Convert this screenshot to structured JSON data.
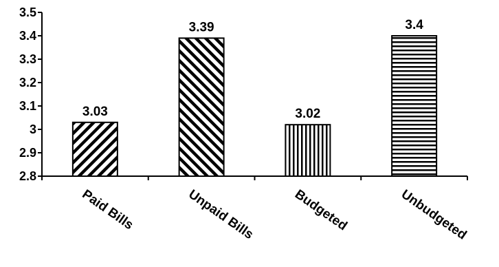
{
  "chart_data": {
    "type": "bar",
    "categories": [
      "Paid Bills",
      "Unpaid Bills",
      "Budgeted",
      "Unbudgeted"
    ],
    "values": [
      3.03,
      3.39,
      3.02,
      3.4
    ],
    "data_labels": [
      "3.03",
      "3.39",
      "3.02",
      "3.4"
    ],
    "patterns": [
      "diagonal-right",
      "diagonal-left",
      "vertical",
      "horizontal"
    ],
    "ylim": [
      2.8,
      3.5
    ],
    "yticks": [
      2.8,
      2.9,
      3,
      3.1,
      3.2,
      3.3,
      3.4,
      3.5
    ],
    "ytick_labels": [
      "2.8",
      "2.9",
      "3",
      "3.1",
      "3.2",
      "3.3",
      "3.4",
      "3.5"
    ],
    "grid": false,
    "legend": "none",
    "bar_color": "#000000",
    "background": "#ffffff"
  }
}
